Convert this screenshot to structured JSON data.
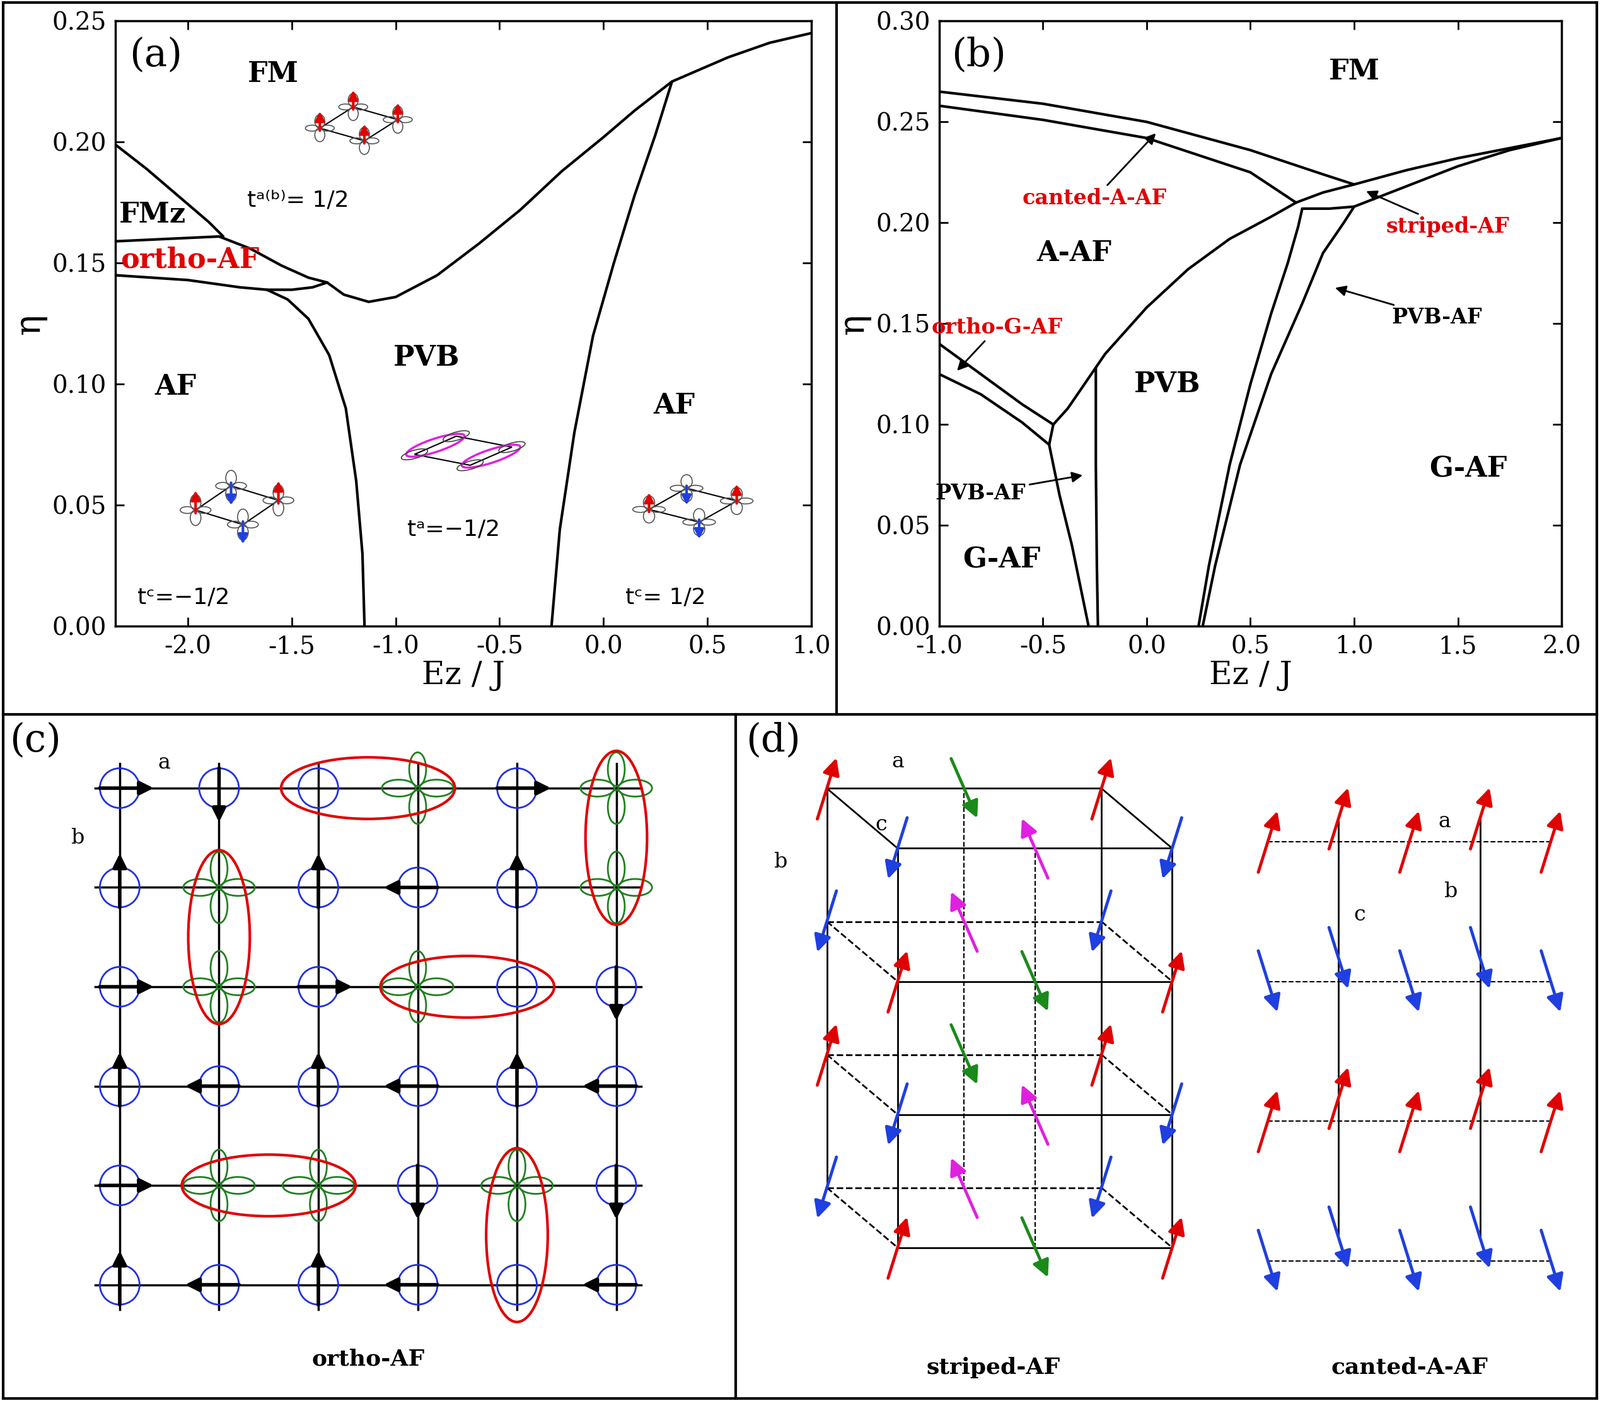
{
  "chart_data": [
    {
      "type": "line",
      "label": "(a)",
      "xlabel": "Ez / J",
      "ylabel": "η",
      "xlim": [
        -2.35,
        1.0
      ],
      "xticks": [
        -2.0,
        -1.5,
        -1.0,
        -0.5,
        0.0,
        0.5,
        1.0
      ],
      "ylim": [
        0,
        0.25
      ],
      "yticks": [
        {
          "value": 0,
          "label": "0.00"
        },
        {
          "value": 0.05,
          "label": "0.05"
        },
        {
          "value": 0.1,
          "label": "0.10"
        },
        {
          "value": 0.15,
          "label": "0.15"
        },
        {
          "value": 0.2,
          "label": "0.20"
        },
        {
          "value": 0.25,
          "label": "0.25"
        }
      ],
      "series": [
        {
          "color": "#000000",
          "x": [
            -2.35,
            -2.2,
            -2.05,
            -1.9,
            -1.83
          ],
          "values": [
            0.199,
            0.189,
            0.178,
            0.167,
            0.161
          ]
        },
        {
          "color": "#000000",
          "x": [
            -2.35,
            -2.1,
            -1.85,
            -1.7,
            -1.55,
            -1.42,
            -1.33
          ],
          "values": [
            0.159,
            0.16,
            0.161,
            0.156,
            0.149,
            0.144,
            0.142
          ]
        },
        {
          "color": "#000000",
          "x": [
            -2.35,
            -2.0,
            -1.75,
            -1.62,
            -1.5,
            -1.4,
            -1.33
          ],
          "values": [
            0.145,
            0.143,
            0.14,
            0.139,
            0.139,
            0.14,
            0.142
          ]
        },
        {
          "color": "#000000",
          "x": [
            -1.33,
            -1.25,
            -1.13,
            -1.0,
            -0.8,
            -0.6,
            -0.4,
            -0.2,
            0.0,
            0.15,
            0.33,
            0.6,
            0.8,
            1.0
          ],
          "values": [
            0.142,
            0.137,
            0.134,
            0.136,
            0.145,
            0.158,
            0.172,
            0.188,
            0.202,
            0.213,
            0.225,
            0.235,
            0.241,
            0.245
          ]
        },
        {
          "color": "#000000",
          "x": [
            -1.15,
            -1.16,
            -1.19,
            -1.24,
            -1.32,
            -1.42,
            -1.52,
            -1.62
          ],
          "values": [
            0.0,
            0.03,
            0.06,
            0.09,
            0.112,
            0.127,
            0.135,
            0.139
          ]
        },
        {
          "color": "#000000",
          "x": [
            -0.25,
            -0.21,
            -0.14,
            -0.05,
            0.05,
            0.15,
            0.25,
            0.33
          ],
          "values": [
            0.0,
            0.04,
            0.08,
            0.12,
            0.15,
            0.178,
            0.203,
            0.225
          ]
        }
      ],
      "annotations": [
        {
          "text": "FM",
          "x": -1.59,
          "y": 0.228,
          "color": "#000000"
        },
        {
          "text": "FMz",
          "x": -2.17,
          "y": 0.17,
          "color": "#000000"
        },
        {
          "text": "ortho-AF",
          "x": -1.99,
          "y": 0.1515,
          "color": "#e00000"
        },
        {
          "text": "AF",
          "x": -2.06,
          "y": 0.099,
          "color": "#000000"
        },
        {
          "text": "PVB",
          "x": -0.85,
          "y": 0.111,
          "color": "#000000"
        },
        {
          "text": "AF",
          "x": 0.34,
          "y": 0.091,
          "color": "#000000"
        }
      ],
      "hopping_labels": [
        {
          "text": "tᵃ⁽ᵇ⁾= 1/2",
          "x": -1.47,
          "y": 0.176
        },
        {
          "text": "tᶜ=−1/2",
          "x": -2.02,
          "y": 0.012
        },
        {
          "text": "tᵃ=−1/2",
          "x": -0.72,
          "y": 0.04
        },
        {
          "text": "tᶜ= 1/2",
          "x": 0.3,
          "y": 0.012
        }
      ]
    },
    {
      "type": "line",
      "label": "(b)",
      "xlabel": "Ez / J",
      "ylabel": "η",
      "xlim": [
        -1.0,
        2.0
      ],
      "xticks": [
        -1.0,
        -0.5,
        0.0,
        0.5,
        1.0,
        1.5,
        2.0
      ],
      "ylim": [
        0,
        0.3
      ],
      "yticks": [
        {
          "value": 0,
          "label": "0.00"
        },
        {
          "value": 0.05,
          "label": "0.05"
        },
        {
          "value": 0.1,
          "label": "0.10"
        },
        {
          "value": 0.15,
          "label": "0.15"
        },
        {
          "value": 0.2,
          "label": "0.20"
        },
        {
          "value": 0.25,
          "label": "0.25"
        },
        {
          "value": 0.3,
          "label": "0.30"
        }
      ],
      "series": [
        {
          "color": "#000000",
          "x": [
            -1.0,
            -0.5,
            0.0,
            0.5,
            0.85,
            1.0
          ],
          "values": [
            0.265,
            0.259,
            0.25,
            0.236,
            0.224,
            0.219
          ]
        },
        {
          "color": "#000000",
          "x": [
            -1.0,
            -0.5,
            0.0,
            0.5,
            0.72
          ],
          "values": [
            0.258,
            0.251,
            0.242,
            0.225,
            0.21
          ]
        },
        {
          "color": "#000000",
          "x": [
            0.72,
            0.85,
            1.0,
            1.25,
            1.5,
            1.75,
            2.0
          ],
          "values": [
            0.21,
            0.215,
            0.219,
            0.226,
            0.232,
            0.237,
            0.242
          ]
        },
        {
          "color": "#000000",
          "x": [
            0.75,
            0.88,
            1.0,
            1.25,
            1.5,
            1.75,
            2.0
          ],
          "values": [
            0.207,
            0.207,
            0.208,
            0.218,
            0.228,
            0.236,
            0.242
          ]
        },
        {
          "color": "#000000",
          "x": [
            -0.45,
            -0.38,
            -0.3,
            -0.2,
            0.0,
            0.2,
            0.4,
            0.6,
            0.72
          ],
          "values": [
            0.1,
            0.108,
            0.12,
            0.135,
            0.158,
            0.177,
            0.192,
            0.203,
            0.21
          ]
        },
        {
          "color": "#000000",
          "x": [
            -1.0,
            -0.8,
            -0.6,
            -0.45
          ],
          "values": [
            0.14,
            0.125,
            0.11,
            0.1
          ]
        },
        {
          "color": "#000000",
          "x": [
            -1.0,
            -0.8,
            -0.6,
            -0.47
          ],
          "values": [
            0.125,
            0.115,
            0.101,
            0.09
          ]
        },
        {
          "color": "#000000",
          "x": [
            -0.45,
            -0.47,
            -0.42,
            -0.36,
            -0.31,
            -0.28
          ],
          "values": [
            0.1,
            0.09,
            0.065,
            0.04,
            0.015,
            0.0
          ]
        },
        {
          "color": "#000000",
          "x": [
            -0.245,
            -0.245,
            -0.24,
            -0.235
          ],
          "values": [
            0.128,
            0.08,
            0.03,
            0.0
          ]
        },
        {
          "color": "#000000",
          "x": [
            0.25,
            0.3,
            0.4,
            0.5,
            0.6,
            0.68,
            0.73,
            0.75
          ],
          "values": [
            0.0,
            0.03,
            0.08,
            0.12,
            0.155,
            0.18,
            0.198,
            0.207
          ]
        },
        {
          "color": "#000000",
          "x": [
            0.27,
            0.33,
            0.45,
            0.6,
            0.75,
            0.85,
            0.95,
            1.0
          ],
          "values": [
            0.0,
            0.03,
            0.08,
            0.125,
            0.16,
            0.185,
            0.2,
            0.208
          ]
        }
      ],
      "annotations": [
        {
          "text": "FM",
          "x": 1.0,
          "y": 0.275,
          "color": "#000000"
        },
        {
          "text": "canted-A-AF",
          "x": -0.25,
          "y": 0.212,
          "color": "#e00000",
          "arrow_to": [
            0.05,
            0.245
          ]
        },
        {
          "text": "striped-AF",
          "x": 1.45,
          "y": 0.198,
          "color": "#e00000",
          "arrow_to": [
            1.05,
            0.216
          ]
        },
        {
          "text": "A-AF",
          "x": -0.35,
          "y": 0.185,
          "color": "#000000"
        },
        {
          "text": "ortho-G-AF",
          "x": -0.72,
          "y": 0.148,
          "color": "#e00000",
          "arrow_to": [
            -0.92,
            0.126
          ]
        },
        {
          "text": "PVB",
          "x": 0.1,
          "y": 0.12,
          "color": "#000000"
        },
        {
          "text": "PVB-AF",
          "x": 1.4,
          "y": 0.153,
          "color": "#000000",
          "arrow_to": [
            0.9,
            0.168
          ]
        },
        {
          "text": "PVB-AF",
          "x": -0.8,
          "y": 0.066,
          "color": "#000000",
          "arrow_to": [
            -0.3,
            0.075
          ]
        },
        {
          "text": "G-AF",
          "x": 1.55,
          "y": 0.078,
          "color": "#000000"
        },
        {
          "text": "G-AF",
          "x": -0.7,
          "y": 0.033,
          "color": "#000000"
        }
      ]
    }
  ],
  "diagrams": {
    "panel_c": {
      "label": "(c)",
      "title": "ortho-AF",
      "axes": [
        "a",
        "b"
      ]
    },
    "panel_d": {
      "label": "(d)",
      "structures": [
        {
          "title": "striped-AF",
          "axes": [
            "a",
            "b",
            "c"
          ]
        },
        {
          "title": "canted-A-AF",
          "axes": [
            "a",
            "b",
            "c"
          ]
        }
      ]
    }
  }
}
